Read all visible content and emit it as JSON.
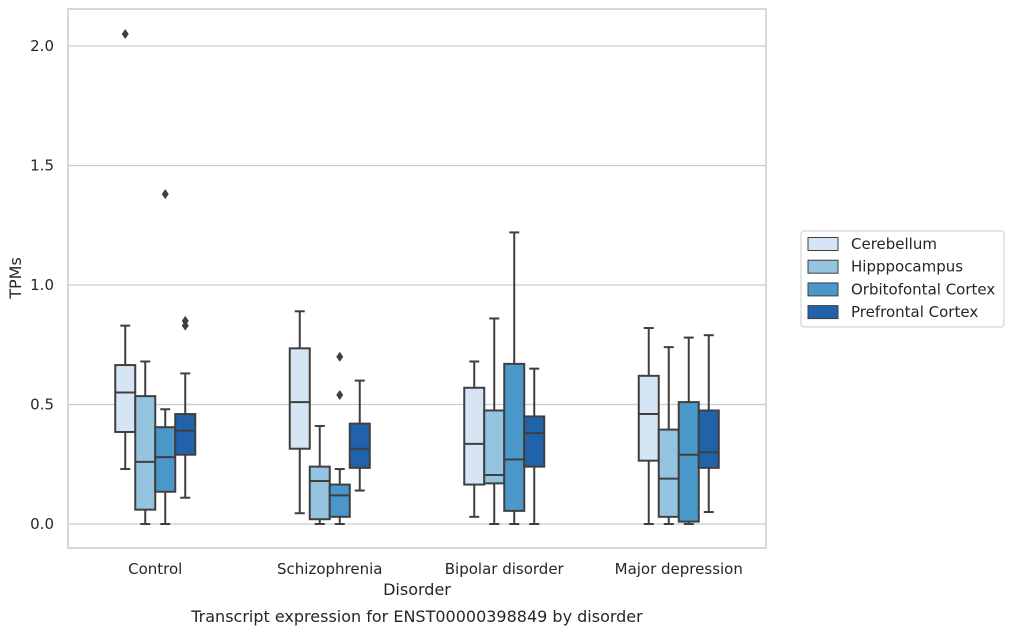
{
  "caption": "Transcript expression for ENST00000398849 by disorder",
  "chart_data": {
    "type": "box",
    "xlabel": "Disorder",
    "ylabel": "TPMs",
    "ylim": [
      -0.1,
      2.16
    ],
    "yticks": [
      0.0,
      0.5,
      1.0,
      1.5,
      2.0
    ],
    "ytick_labels": [
      "0.0",
      "0.5",
      "1.0",
      "1.5",
      "2.0"
    ],
    "grid": "horizontal",
    "legend_position": "outside right",
    "categories": [
      "Control",
      "Schizophrenia",
      "Bipolar disorder",
      "Major depression"
    ],
    "series": [
      {
        "name": "Cerebellum",
        "color": "#d6e5f4",
        "boxes": [
          {
            "whislo": 0.23,
            "q1": 0.385,
            "med": 0.55,
            "q3": 0.665,
            "whishi": 0.83,
            "fliers": [
              2.05
            ]
          },
          {
            "whislo": 0.045,
            "q1": 0.315,
            "med": 0.51,
            "q3": 0.735,
            "whishi": 0.89,
            "fliers": []
          },
          {
            "whislo": 0.03,
            "q1": 0.165,
            "med": 0.335,
            "q3": 0.57,
            "whishi": 0.68,
            "fliers": []
          },
          {
            "whislo": 0.0,
            "q1": 0.265,
            "med": 0.46,
            "q3": 0.62,
            "whishi": 0.82,
            "fliers": []
          }
        ]
      },
      {
        "name": "Hipppocampus",
        "color": "#94c4df",
        "boxes": [
          {
            "whislo": 0.0,
            "q1": 0.06,
            "med": 0.26,
            "q3": 0.535,
            "whishi": 0.68,
            "fliers": []
          },
          {
            "whislo": 0.0,
            "q1": 0.02,
            "med": 0.18,
            "q3": 0.24,
            "whishi": 0.41,
            "fliers": []
          },
          {
            "whislo": 0.0,
            "q1": 0.17,
            "med": 0.205,
            "q3": 0.475,
            "whishi": 0.86,
            "fliers": []
          },
          {
            "whislo": 0.0,
            "q1": 0.03,
            "med": 0.19,
            "q3": 0.395,
            "whishi": 0.74,
            "fliers": []
          }
        ]
      },
      {
        "name": "Orbitofontal Cortex",
        "color": "#4a98c9",
        "boxes": [
          {
            "whislo": 0.0,
            "q1": 0.135,
            "med": 0.28,
            "q3": 0.405,
            "whishi": 0.48,
            "fliers": [
              1.38
            ]
          },
          {
            "whislo": 0.0,
            "q1": 0.03,
            "med": 0.12,
            "q3": 0.165,
            "whishi": 0.23,
            "fliers": [
              0.54,
              0.7
            ]
          },
          {
            "whislo": 0.0,
            "q1": 0.055,
            "med": 0.27,
            "q3": 0.67,
            "whishi": 1.22,
            "fliers": []
          },
          {
            "whislo": 0.0,
            "q1": 0.01,
            "med": 0.29,
            "q3": 0.51,
            "whishi": 0.78,
            "fliers": []
          }
        ]
      },
      {
        "name": "Prefrontal Cortex",
        "color": "#2163aa",
        "boxes": [
          {
            "whislo": 0.11,
            "q1": 0.29,
            "med": 0.39,
            "q3": 0.46,
            "whishi": 0.63,
            "fliers": [
              0.83,
              0.85
            ]
          },
          {
            "whislo": 0.14,
            "q1": 0.235,
            "med": 0.315,
            "q3": 0.42,
            "whishi": 0.6,
            "fliers": []
          },
          {
            "whislo": 0.0,
            "q1": 0.24,
            "med": 0.38,
            "q3": 0.45,
            "whishi": 0.65,
            "fliers": []
          },
          {
            "whislo": 0.05,
            "q1": 0.235,
            "med": 0.3,
            "q3": 0.475,
            "whishi": 0.79,
            "fliers": []
          }
        ]
      }
    ]
  }
}
